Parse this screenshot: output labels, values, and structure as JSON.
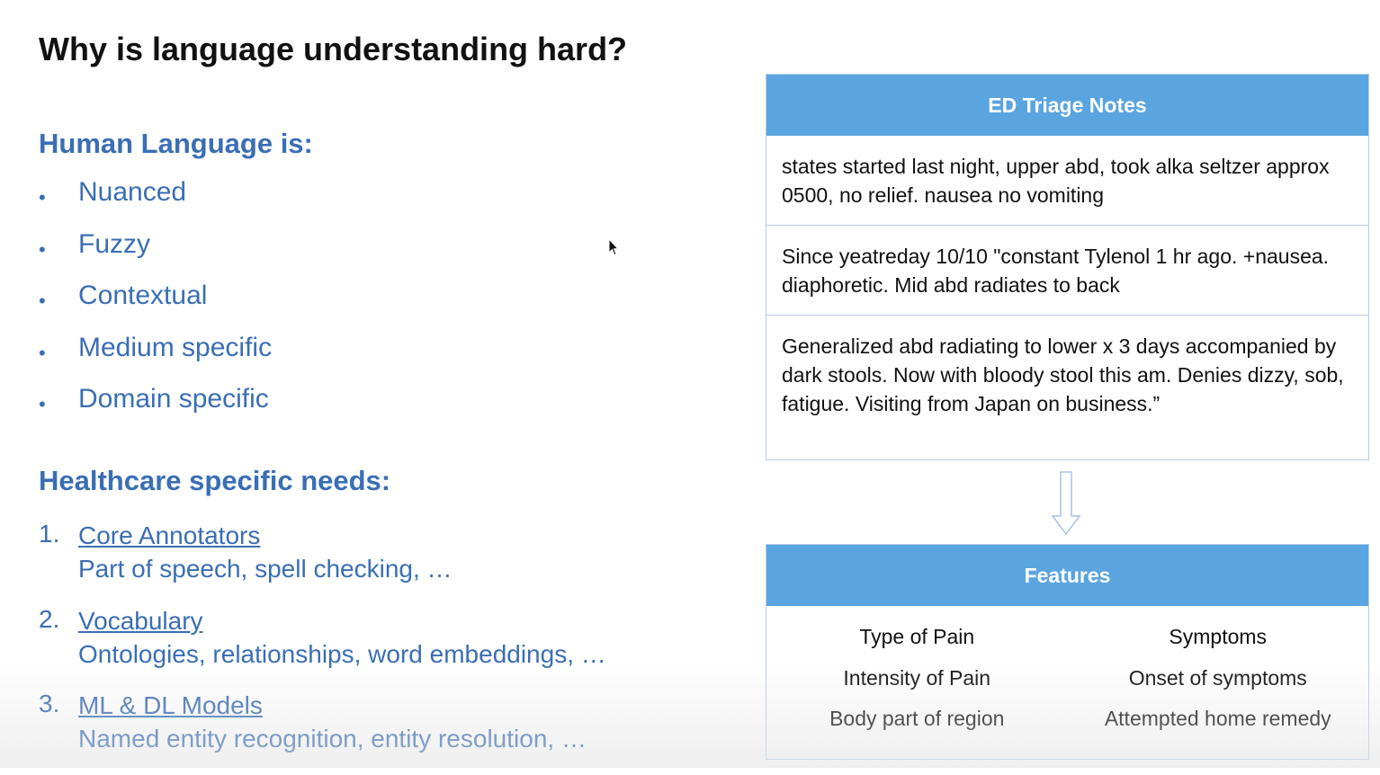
{
  "title": "Why is language understanding hard?",
  "human_language": {
    "heading": "Human Language is:",
    "items": [
      "Nuanced",
      "Fuzzy",
      "Contextual",
      "Medium specific",
      "Domain specific"
    ]
  },
  "healthcare": {
    "heading": "Healthcare specific needs:",
    "items": [
      {
        "num": "1.",
        "title": "Core Annotators",
        "desc": "Part of speech, spell checking, …"
      },
      {
        "num": "2.",
        "title": "Vocabulary",
        "desc": "Ontologies, relationships, word embeddings, …"
      },
      {
        "num": "3.",
        "title": "ML & DL Models",
        "desc": "Named entity recognition, entity resolution, …"
      }
    ]
  },
  "triage": {
    "header": "ED Triage Notes",
    "notes": [
      "states started last night, upper abd, took alka seltzer approx 0500, no relief. nausea no vomiting",
      "Since yeatreday 10/10 \"constant Tylenol 1 hr ago. +nausea. diaphoretic. Mid abd radiates to back",
      "Generalized abd radiating to lower x 3 days accompanied by dark stools. Now with bloody stool this am. Denies dizzy, sob, fatigue. Visiting from Japan on business.”"
    ]
  },
  "features": {
    "header": "Features",
    "left": [
      "Type of Pain",
      "Intensity of Pain",
      "Body part of region"
    ],
    "right": [
      "Symptoms",
      "Onset of symptoms",
      "Attempted home remedy"
    ]
  },
  "colors": {
    "accent_blue": "#3a6eb5",
    "header_blue": "#5aa5e0",
    "border": "#b7cde6"
  },
  "icons": {
    "cursor": "mouse-pointer-icon",
    "arrow": "down-arrow-icon"
  }
}
